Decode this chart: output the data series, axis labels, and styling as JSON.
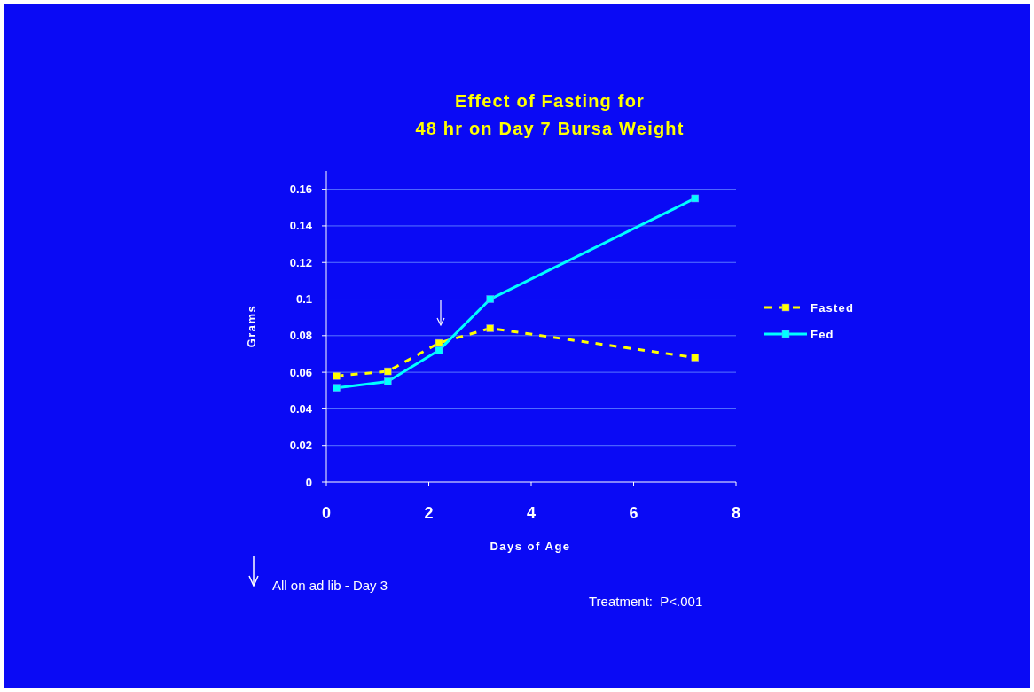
{
  "chart_data": {
    "type": "line",
    "title": "Effect of Fasting for\n48 hr on Day 7 Bursa Weight",
    "xlabel": "Days of Age",
    "ylabel": "Grams",
    "xlim": [
      0,
      8
    ],
    "xticks": [
      0,
      2,
      4,
      6,
      8
    ],
    "ylim": [
      0,
      0.17
    ],
    "yticks": [
      0,
      0.02,
      0.04,
      0.06,
      0.08,
      0.1,
      0.12,
      0.14,
      0.16
    ],
    "grid": "y",
    "legend": "right",
    "marker": "square",
    "series": [
      {
        "name": "Fasted",
        "color": "#ffff00",
        "line_style": "dashed",
        "x": [
          0.2,
          1.2,
          2.2,
          3.2,
          7.2
        ],
        "values": [
          0.058,
          0.0605,
          0.076,
          0.084,
          0.068
        ]
      },
      {
        "name": "Fed",
        "color": "#00ffff",
        "line_style": "solid",
        "x": [
          0.2,
          1.2,
          2.2,
          3.2,
          7.2
        ],
        "values": [
          0.0515,
          0.055,
          0.072,
          0.1,
          0.155
        ]
      }
    ],
    "annotations": [
      "All on ad lib - Day 3",
      "Treatment:  P<.001"
    ]
  }
}
